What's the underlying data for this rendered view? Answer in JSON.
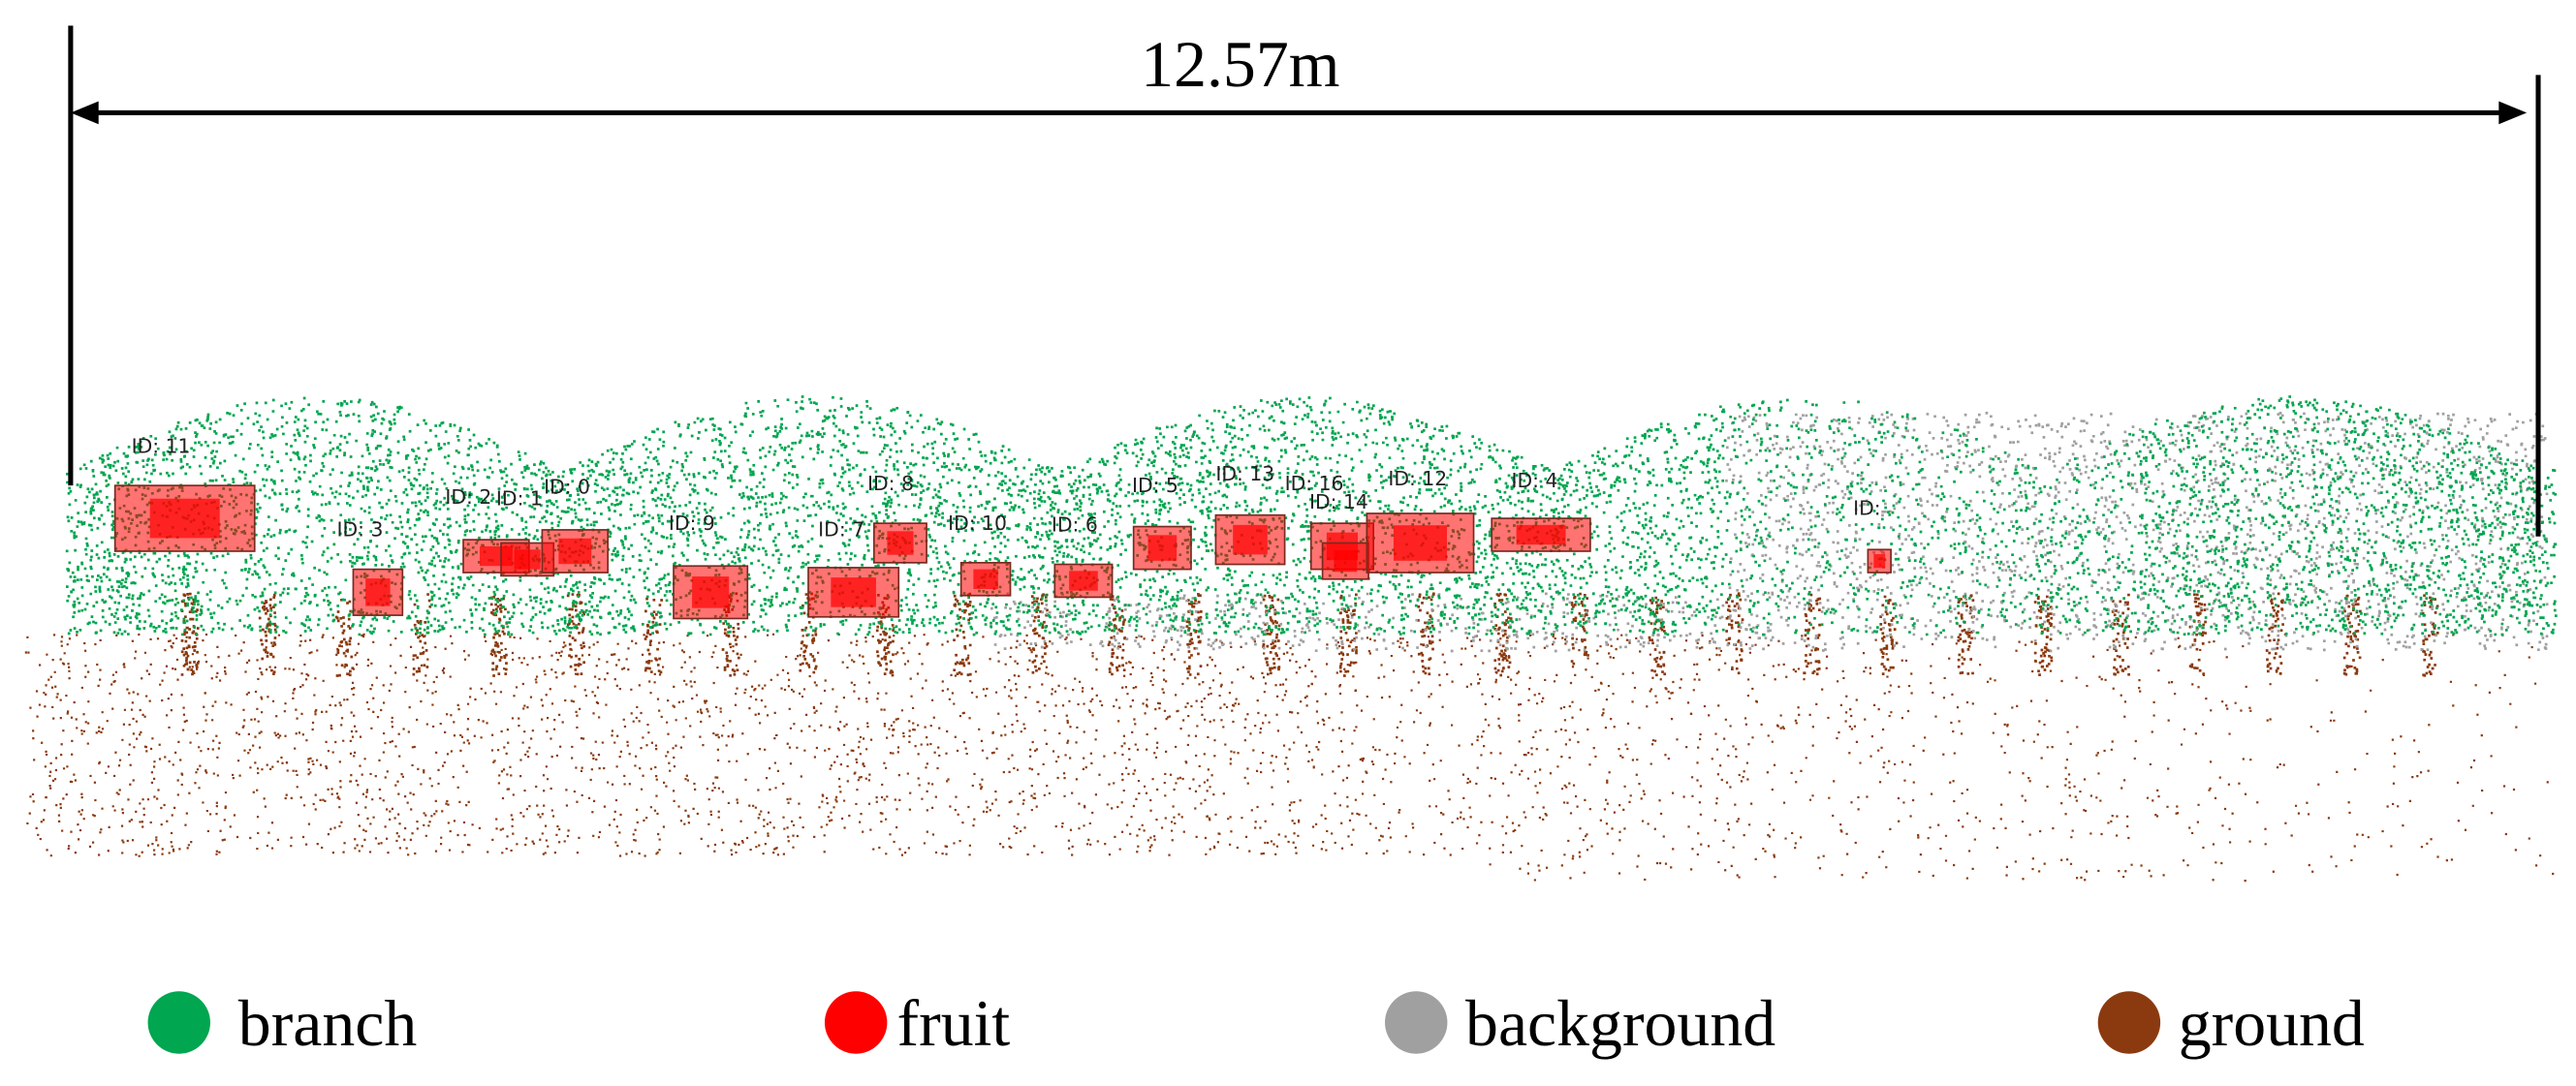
{
  "dimension": {
    "label": "12.57m"
  },
  "detections": [
    {
      "label": "ID: 11"
    },
    {
      "label": "ID: 3"
    },
    {
      "label": "ID: 2"
    },
    {
      "label": "ID: 1"
    },
    {
      "label": "ID: 0"
    },
    {
      "label": "ID: 9"
    },
    {
      "label": "ID: 7"
    },
    {
      "label": "ID: 8"
    },
    {
      "label": "ID: 10"
    },
    {
      "label": "ID: 6"
    },
    {
      "label": "ID: 5"
    },
    {
      "label": "ID: 13"
    },
    {
      "label": "ID: 16"
    },
    {
      "label": "ID: 14"
    },
    {
      "label": "ID: 12"
    },
    {
      "label": "ID: 4"
    },
    {
      "label": "ID:"
    }
  ],
  "legend": [
    {
      "label": "branch",
      "color": "#00a650"
    },
    {
      "label": "fruit",
      "color": "#ff0000"
    },
    {
      "label": "background",
      "color": "#a0a0a0"
    },
    {
      "label": "ground",
      "color": "#8b3a0f"
    }
  ]
}
